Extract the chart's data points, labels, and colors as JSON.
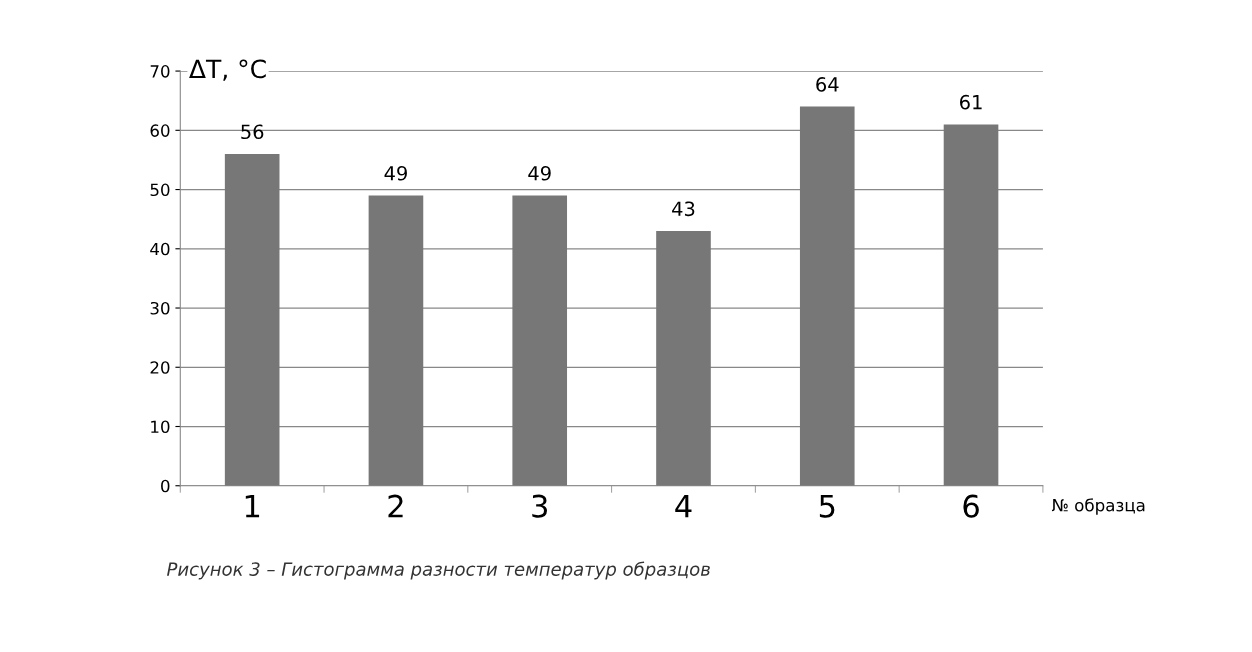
{
  "chart_data": {
    "type": "bar",
    "categories": [
      "1",
      "2",
      "3",
      "4",
      "5",
      "6"
    ],
    "values": [
      56,
      49,
      49,
      43,
      64,
      61
    ],
    "color": "#777777",
    "ylabel": "ΔT, °C",
    "xlabel": "№ образца",
    "ylim": [
      0,
      70
    ],
    "yticks": [
      0,
      10,
      20,
      30,
      40,
      50,
      60,
      70
    ],
    "grid": "y",
    "data_labels": true,
    "annotations": [
      "Рисунок 3 – Гистограмма разности температур образцов"
    ]
  }
}
